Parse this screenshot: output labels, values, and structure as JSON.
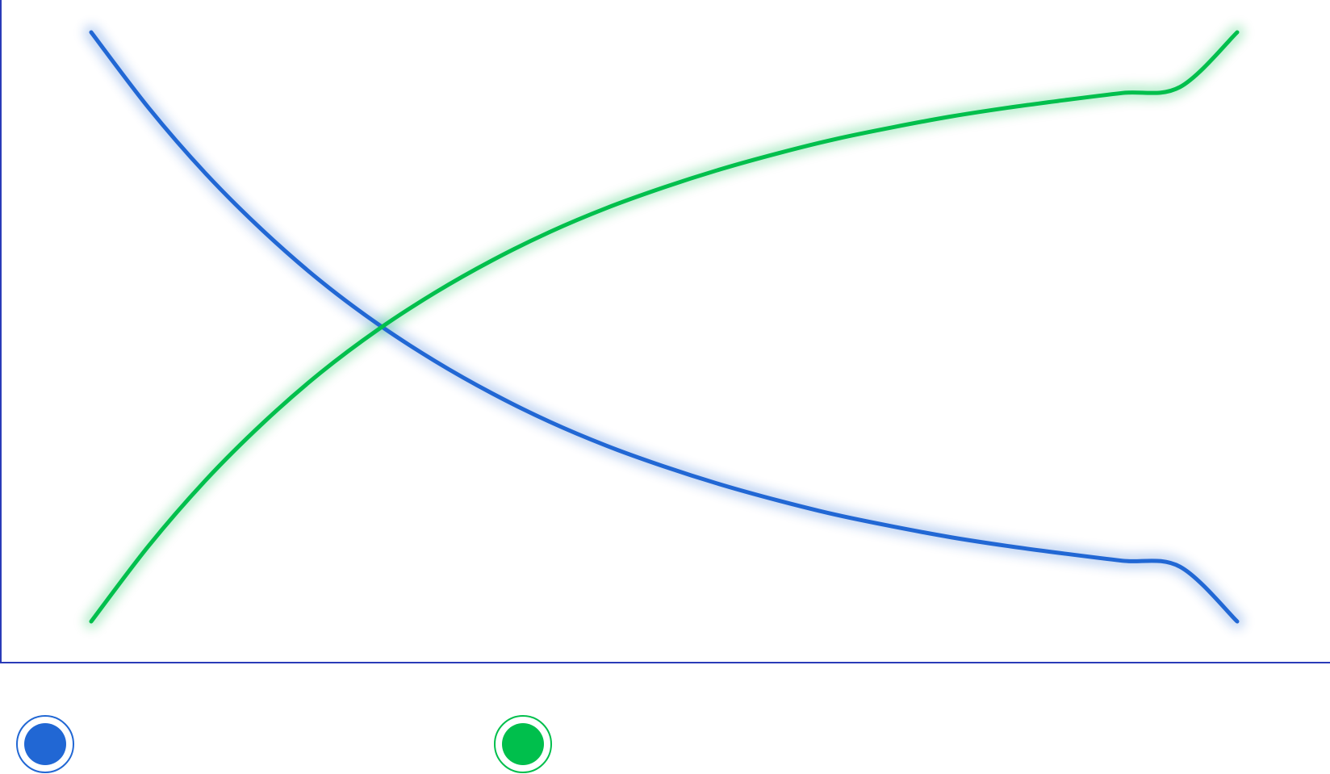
{
  "chart_data": {
    "type": "line",
    "title": "",
    "xlabel": "",
    "ylabel": "",
    "grid": false,
    "legend_placement": "bottom-left",
    "x": [
      0,
      1,
      2,
      3,
      4,
      5,
      6,
      7,
      8,
      9,
      10,
      11,
      12,
      13,
      14,
      15,
      16,
      17,
      18,
      19,
      20
    ],
    "xlim": [
      0,
      20
    ],
    "ylim": [
      0,
      1
    ],
    "series": [
      {
        "color": "#2167d4",
        "values": [
          1.0,
          0.872,
          0.76,
          0.663,
          0.578,
          0.505,
          0.442,
          0.387,
          0.339,
          0.298,
          0.263,
          0.232,
          0.205,
          0.181,
          0.161,
          0.143,
          0.128,
          0.115,
          0.103,
          0.093,
          0.0
        ]
      },
      {
        "color": "#00bf4c",
        "values": [
          0.0,
          0.128,
          0.24,
          0.337,
          0.422,
          0.495,
          0.558,
          0.613,
          0.661,
          0.702,
          0.737,
          0.768,
          0.795,
          0.819,
          0.839,
          0.857,
          0.872,
          0.885,
          0.897,
          0.907,
          1.0
        ]
      }
    ]
  }
}
